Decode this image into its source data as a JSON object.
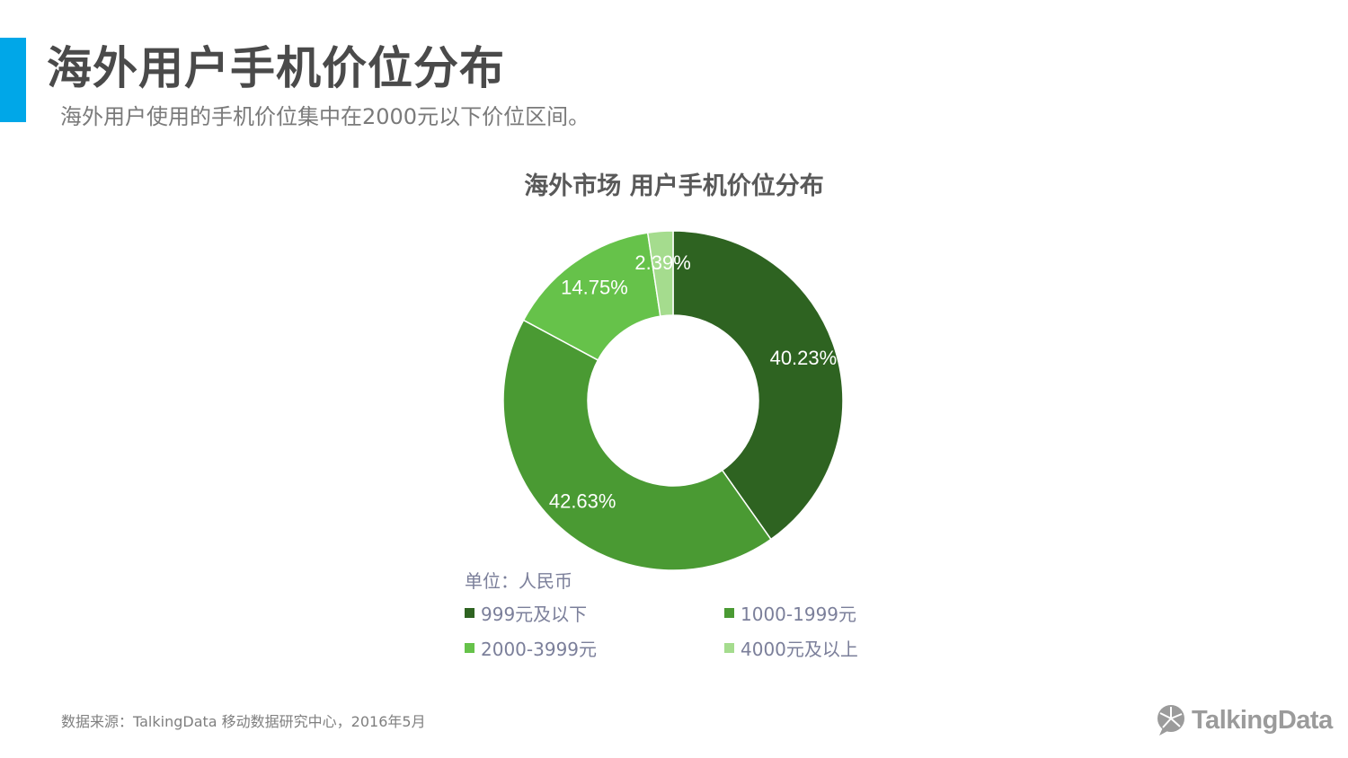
{
  "header": {
    "title": "海外用户手机价位分布",
    "subtitle": "海外用户使用的手机价位集中在2000元以下价位区间。"
  },
  "chart_data": {
    "type": "pie",
    "variant": "donut",
    "title": "海外市场 用户手机价位分布",
    "unit_label": "单位：人民币",
    "categories": [
      "999元及以下",
      "1000-1999元",
      "2000-3999元",
      "4000元及以上"
    ],
    "values": [
      40.23,
      42.63,
      14.75,
      2.39
    ],
    "data_labels": [
      "40.23%",
      "42.63%",
      "14.75%",
      "2.39%"
    ],
    "colors": [
      "#2e6321",
      "#4a9a33",
      "#66c24a",
      "#a5dc8e"
    ],
    "legend_position": "bottom"
  },
  "footer": {
    "source": "数据来源：TalkingData 移动数据研究中心，2016年5月",
    "brand": "TalkingData",
    "brand_icon": "chat-bubble-icon"
  }
}
